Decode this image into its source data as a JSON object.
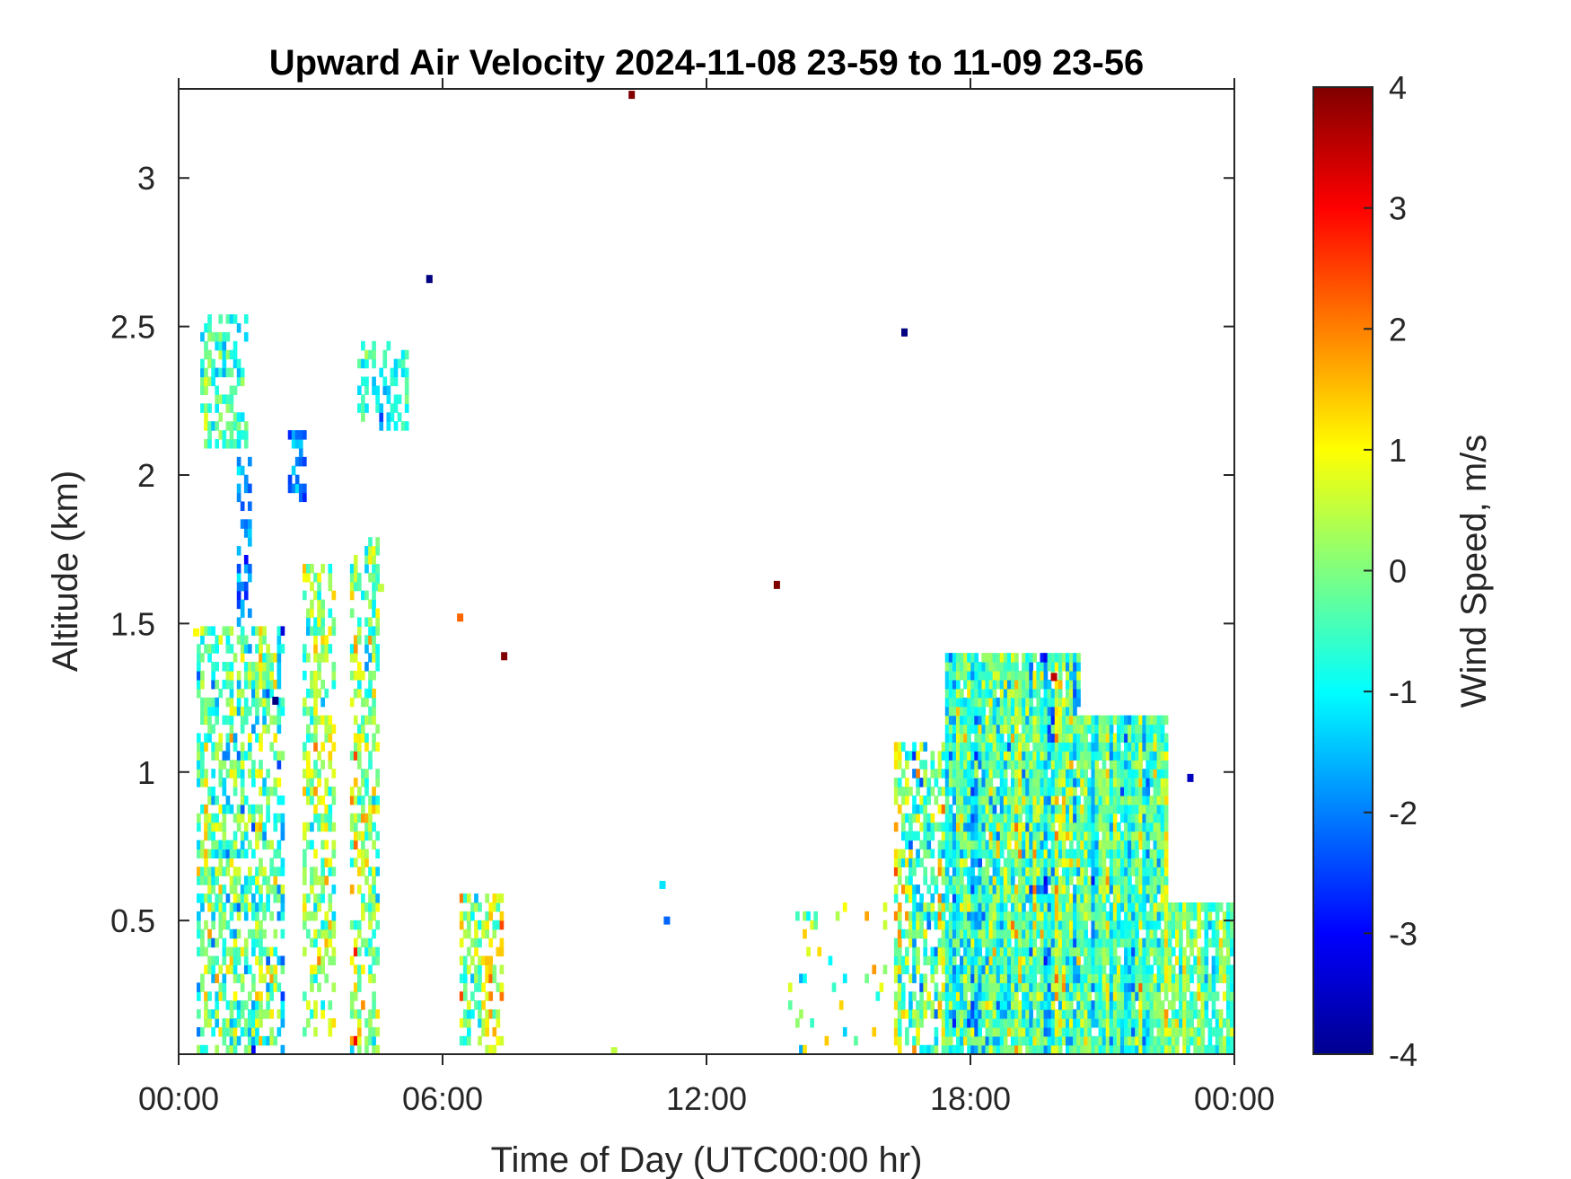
{
  "chart_data": {
    "type": "heatmap",
    "title": "Upward Air Velocity 2024-11-08 23-59 to 11-09 23-56",
    "xlabel": "Time of Day (UTC00:00 hr)",
    "ylabel": "Altitude (km)",
    "colorbar_label": "Wind Speed, m/s",
    "xlim": [
      0,
      24
    ],
    "ylim": [
      0.05,
      3.3
    ],
    "clim": [
      -4,
      4
    ],
    "colormap": "jet",
    "x_ticks": [
      0,
      6,
      12,
      18,
      24
    ],
    "x_tick_labels": [
      "00:00",
      "06:00",
      "12:00",
      "18:00",
      "00:00"
    ],
    "y_ticks": [
      0.5,
      1,
      1.5,
      2,
      2.5,
      3
    ],
    "y_tick_labels": [
      "0.5",
      "1",
      "1.5",
      "2",
      "2.5",
      "3"
    ],
    "colorbar_ticks": [
      -4,
      -3,
      -2,
      -1,
      0,
      1,
      2,
      3,
      4
    ],
    "colorbar_tick_labels": [
      "-4",
      "-3",
      "-2",
      "-1",
      "0",
      "1",
      "2",
      "3",
      "4"
    ],
    "regions": [
      {
        "t0": 0.4,
        "t1": 2.4,
        "h0": 0.05,
        "h1": 1.5,
        "density": 0.55,
        "mean": -0.2,
        "spread": 1.6
      },
      {
        "t0": 0.5,
        "t1": 1.6,
        "h0": 2.1,
        "h1": 2.55,
        "density": 0.5,
        "mean": -0.5,
        "spread": 1.0
      },
      {
        "t0": 1.3,
        "t1": 1.7,
        "h0": 0.3,
        "h1": 2.1,
        "density": 0.45,
        "mean": -1.8,
        "spread": 1.0
      },
      {
        "t0": 2.5,
        "t1": 2.9,
        "h0": 1.9,
        "h1": 2.15,
        "density": 0.5,
        "mean": -1.8,
        "spread": 0.8
      },
      {
        "t0": 2.8,
        "t1": 3.6,
        "h0": 0.1,
        "h1": 1.7,
        "density": 0.5,
        "mean": 0.3,
        "spread": 1.5
      },
      {
        "t0": 3.9,
        "t1": 4.6,
        "h0": 0.05,
        "h1": 1.8,
        "density": 0.5,
        "mean": 0.0,
        "spread": 1.6
      },
      {
        "t0": 4.1,
        "t1": 5.2,
        "h0": 2.15,
        "h1": 2.45,
        "density": 0.5,
        "mean": -0.6,
        "spread": 1.0
      },
      {
        "t0": 6.4,
        "t1": 7.4,
        "h0": 0.05,
        "h1": 0.6,
        "density": 0.5,
        "mean": 0.4,
        "spread": 1.5
      },
      {
        "t0": 16.3,
        "t1": 17.4,
        "h0": 0.05,
        "h1": 1.1,
        "density": 0.6,
        "mean": -0.2,
        "spread": 1.8
      },
      {
        "t0": 17.4,
        "t1": 20.5,
        "h0": 0.05,
        "h1": 1.4,
        "density": 0.95,
        "mean": -0.4,
        "spread": 1.6
      },
      {
        "t0": 20.5,
        "t1": 22.5,
        "h0": 0.05,
        "h1": 1.2,
        "density": 0.95,
        "mean": -0.3,
        "spread": 1.3
      },
      {
        "t0": 22.5,
        "t1": 24.0,
        "h0": 0.05,
        "h1": 0.55,
        "density": 0.85,
        "mean": -0.2,
        "spread": 1.0
      },
      {
        "t0": 13.9,
        "t1": 16.1,
        "h0": 0.05,
        "h1": 0.55,
        "density": 0.07,
        "mean": 0.2,
        "spread": 1.8
      }
    ],
    "isolated_points": [
      {
        "t": 10.3,
        "h": 3.28,
        "v": 4.0
      },
      {
        "t": 5.7,
        "h": 2.66,
        "v": -4.0
      },
      {
        "t": 16.5,
        "h": 2.48,
        "v": -4.0
      },
      {
        "t": 13.6,
        "h": 1.63,
        "v": 4.0
      },
      {
        "t": 6.4,
        "h": 1.52,
        "v": 2.2
      },
      {
        "t": 7.4,
        "h": 1.39,
        "v": 4.0
      },
      {
        "t": 2.2,
        "h": 1.24,
        "v": -4.0
      },
      {
        "t": 23.0,
        "h": 0.98,
        "v": -3.5
      },
      {
        "t": 11.0,
        "h": 0.62,
        "v": -1.2
      },
      {
        "t": 11.1,
        "h": 0.5,
        "v": -2.2
      },
      {
        "t": 19.9,
        "h": 1.32,
        "v": 3.5
      },
      {
        "t": 4.6,
        "h": 1.62,
        "v": 0.5
      },
      {
        "t": 0.4,
        "h": 1.47,
        "v": 1.0
      },
      {
        "t": 9.9,
        "h": 0.06,
        "v": 0.5
      }
    ]
  }
}
